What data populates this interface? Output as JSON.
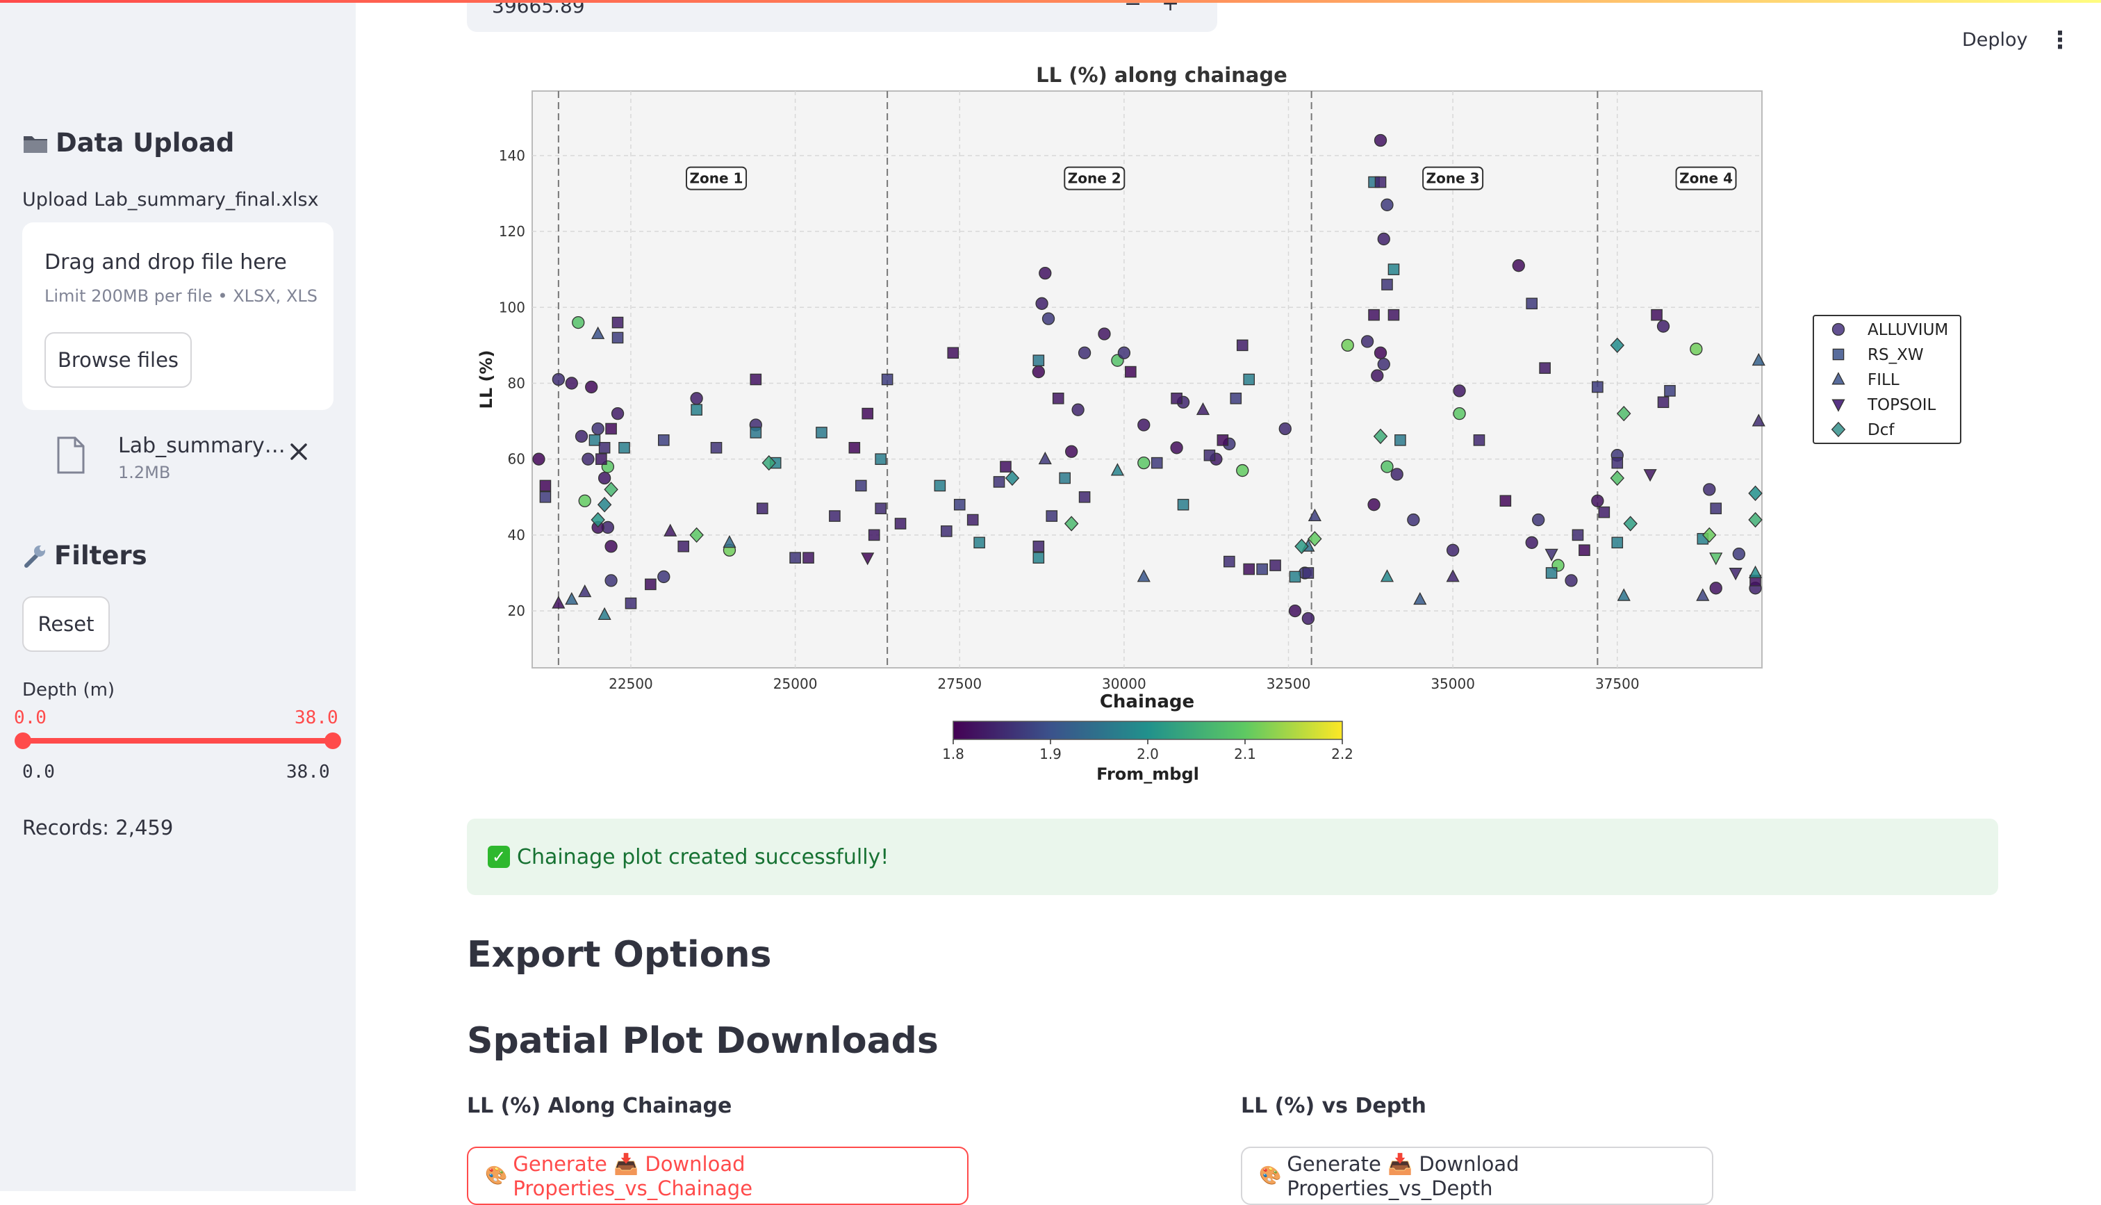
{
  "sidebar": {
    "upload_title": "Data Upload",
    "upload_label": "Upload Lab_summary_final.xlsx",
    "drop_title": "Drag and drop file here",
    "drop_limit": "Limit 200MB per file • XLSX, XLS",
    "browse_label": "Browse files",
    "file_name": "Lab_summary…",
    "file_size": "1.2MB",
    "filters_title": "Filters",
    "reset_label": "Reset",
    "depth_label": "Depth (m)",
    "depth_low": "0.0",
    "depth_high": "38.0",
    "depth_min": "0.0",
    "depth_max": "38.0",
    "depth_low_value": 0.0,
    "depth_high_value": 38.0,
    "records": "Records: 2,459"
  },
  "header": {
    "number_input_value": "39665.89",
    "minus": "−",
    "plus": "+",
    "deploy_label": "Deploy",
    "menu_glyph": "⋮"
  },
  "chart_data": {
    "type": "scatter",
    "title": "LL (%) along chainage",
    "xlabel": "Chainage",
    "ylabel": "LL (%)",
    "xlim": [
      21000,
      39700
    ],
    "ylim": [
      5,
      157
    ],
    "x_ticks": [
      22500,
      25000,
      27500,
      30000,
      32500,
      35000,
      37500
    ],
    "y_ticks": [
      20,
      40,
      60,
      80,
      100,
      120,
      140
    ],
    "grid": true,
    "zone_boundaries": [
      21400,
      26400,
      32850,
      37200
    ],
    "zones": [
      {
        "label": "Zone 1",
        "x": 23800,
        "y": 134
      },
      {
        "label": "Zone 2",
        "x": 29550,
        "y": 134
      },
      {
        "label": "Zone 3",
        "x": 35000,
        "y": 134
      },
      {
        "label": "Zone 4",
        "x": 38850,
        "y": 134
      }
    ],
    "legend_position": "right",
    "colorbar": {
      "label": "From_mbgl",
      "min": 1.8,
      "max": 2.2,
      "ticks": [
        1.8,
        1.9,
        2.0,
        2.1,
        2.2
      ]
    },
    "series": [
      {
        "name": "ALLUVIUM",
        "marker": "circle",
        "points": [
          [
            21100,
            60
          ],
          [
            21400,
            81
          ],
          [
            21600,
            80
          ],
          [
            21700,
            96
          ],
          [
            21750,
            66
          ],
          [
            21900,
            79
          ],
          [
            22000,
            68
          ],
          [
            22100,
            55
          ],
          [
            22150,
            58
          ],
          [
            22150,
            42
          ],
          [
            22200,
            37
          ],
          [
            22200,
            28
          ],
          [
            22300,
            72
          ],
          [
            21800,
            49
          ],
          [
            21850,
            60
          ],
          [
            22000,
            42
          ],
          [
            23000,
            29
          ],
          [
            23500,
            76
          ],
          [
            24000,
            36
          ],
          [
            24400,
            69
          ],
          [
            28800,
            109
          ],
          [
            28850,
            97
          ],
          [
            28750,
            101
          ],
          [
            28700,
            83
          ],
          [
            29400,
            88
          ],
          [
            29700,
            93
          ],
          [
            29900,
            86
          ],
          [
            29300,
            73
          ],
          [
            29200,
            62
          ],
          [
            30000,
            88
          ],
          [
            30300,
            69
          ],
          [
            30300,
            59
          ],
          [
            30900,
            75
          ],
          [
            30800,
            63
          ],
          [
            31600,
            64
          ],
          [
            31400,
            60
          ],
          [
            31800,
            57
          ],
          [
            32450,
            68
          ],
          [
            32600,
            20
          ],
          [
            32750,
            30
          ],
          [
            32800,
            18
          ],
          [
            33400,
            90
          ],
          [
            33700,
            91
          ],
          [
            33900,
            144
          ],
          [
            34000,
            127
          ],
          [
            33950,
            118
          ],
          [
            33900,
            88
          ],
          [
            33950,
            85
          ],
          [
            33850,
            82
          ],
          [
            34000,
            58
          ],
          [
            34150,
            56
          ],
          [
            33800,
            48
          ],
          [
            34400,
            44
          ],
          [
            35100,
            78
          ],
          [
            35100,
            72
          ],
          [
            35000,
            36
          ],
          [
            36000,
            111
          ],
          [
            36300,
            44
          ],
          [
            36200,
            38
          ],
          [
            36600,
            32
          ],
          [
            36800,
            28
          ],
          [
            37200,
            49
          ],
          [
            37500,
            61
          ],
          [
            38200,
            95
          ],
          [
            38700,
            89
          ],
          [
            38900,
            52
          ],
          [
            39000,
            26
          ],
          [
            39350,
            35
          ],
          [
            39600,
            26
          ]
        ]
      },
      {
        "name": "RS_XW",
        "marker": "square",
        "points": [
          [
            21200,
            53
          ],
          [
            21200,
            50
          ],
          [
            22050,
            60
          ],
          [
            21950,
            65
          ],
          [
            22100,
            63
          ],
          [
            22200,
            68
          ],
          [
            22300,
            92
          ],
          [
            22300,
            96
          ],
          [
            22400,
            63
          ],
          [
            22500,
            22
          ],
          [
            22800,
            27
          ],
          [
            23000,
            65
          ],
          [
            23300,
            37
          ],
          [
            23500,
            73
          ],
          [
            23800,
            63
          ],
          [
            24400,
            81
          ],
          [
            24400,
            67
          ],
          [
            24500,
            47
          ],
          [
            24700,
            59
          ],
          [
            25000,
            34
          ],
          [
            25200,
            34
          ],
          [
            25400,
            67
          ],
          [
            25600,
            45
          ],
          [
            25900,
            63
          ],
          [
            26000,
            53
          ],
          [
            26200,
            40
          ],
          [
            26300,
            60
          ],
          [
            26300,
            47
          ],
          [
            26100,
            72
          ],
          [
            26400,
            81
          ],
          [
            26600,
            43
          ],
          [
            27200,
            53
          ],
          [
            27300,
            41
          ],
          [
            27400,
            88
          ],
          [
            27500,
            48
          ],
          [
            27700,
            44
          ],
          [
            27800,
            38
          ],
          [
            28100,
            54
          ],
          [
            28200,
            58
          ],
          [
            28700,
            86
          ],
          [
            28700,
            37
          ],
          [
            28700,
            34
          ],
          [
            28900,
            45
          ],
          [
            29000,
            76
          ],
          [
            29100,
            55
          ],
          [
            29400,
            50
          ],
          [
            30100,
            83
          ],
          [
            30500,
            59
          ],
          [
            30800,
            76
          ],
          [
            30900,
            48
          ],
          [
            31300,
            61
          ],
          [
            31500,
            65
          ],
          [
            31700,
            76
          ],
          [
            31800,
            90
          ],
          [
            31900,
            81
          ],
          [
            31600,
            33
          ],
          [
            31900,
            31
          ],
          [
            32100,
            31
          ],
          [
            32300,
            32
          ],
          [
            32600,
            29
          ],
          [
            32800,
            30
          ],
          [
            33800,
            98
          ],
          [
            33800,
            133
          ],
          [
            33900,
            133
          ],
          [
            34100,
            110
          ],
          [
            34000,
            106
          ],
          [
            34100,
            98
          ],
          [
            34200,
            65
          ],
          [
            35400,
            65
          ],
          [
            35800,
            49
          ],
          [
            36200,
            101
          ],
          [
            36400,
            84
          ],
          [
            36500,
            30
          ],
          [
            36900,
            40
          ],
          [
            37000,
            36
          ],
          [
            37200,
            79
          ],
          [
            37300,
            46
          ],
          [
            37500,
            38
          ],
          [
            37500,
            59
          ],
          [
            38100,
            98
          ],
          [
            38300,
            78
          ],
          [
            38200,
            75
          ],
          [
            38800,
            39
          ],
          [
            39000,
            47
          ],
          [
            39600,
            28
          ]
        ]
      },
      {
        "name": "FILL",
        "marker": "triangle-up",
        "points": [
          [
            21400,
            22
          ],
          [
            21600,
            23
          ],
          [
            21800,
            25
          ],
          [
            22100,
            19
          ],
          [
            22000,
            93
          ],
          [
            23100,
            41
          ],
          [
            24000,
            38
          ],
          [
            28800,
            60
          ],
          [
            29900,
            57
          ],
          [
            30300,
            29
          ],
          [
            31200,
            73
          ],
          [
            32800,
            37
          ],
          [
            32900,
            45
          ],
          [
            34000,
            29
          ],
          [
            34500,
            23
          ],
          [
            35000,
            29
          ],
          [
            37600,
            24
          ],
          [
            38800,
            24
          ],
          [
            39600,
            30
          ],
          [
            39650,
            86
          ],
          [
            39650,
            70
          ]
        ]
      },
      {
        "name": "TOPSOIL",
        "marker": "triangle-down",
        "points": [
          [
            26100,
            34
          ],
          [
            36500,
            35
          ],
          [
            38000,
            56
          ],
          [
            39000,
            34
          ],
          [
            39300,
            30
          ]
        ]
      },
      {
        "name": "Dcf",
        "marker": "diamond",
        "points": [
          [
            22100,
            48
          ],
          [
            22200,
            52
          ],
          [
            22000,
            44
          ],
          [
            23500,
            40
          ],
          [
            24600,
            59
          ],
          [
            28300,
            55
          ],
          [
            29200,
            43
          ],
          [
            32700,
            37
          ],
          [
            32900,
            39
          ],
          [
            33900,
            66
          ],
          [
            37500,
            90
          ],
          [
            37600,
            72
          ],
          [
            37700,
            43
          ],
          [
            38900,
            40
          ],
          [
            39600,
            44
          ],
          [
            39600,
            51
          ],
          [
            37500,
            55
          ]
        ]
      }
    ]
  },
  "success_message": "Chainage plot created successfully!",
  "export_title": "Export Options",
  "spatial_title": "Spatial Plot Downloads",
  "left_subtitle": "LL (%) Along Chainage",
  "right_subtitle": "LL (%) vs Depth",
  "left_button": "Generate 📥 Download Properties_vs_Chainage",
  "right_button": "Generate 📥 Download Properties_vs_Depth",
  "accent_color": "#ff4b4b"
}
